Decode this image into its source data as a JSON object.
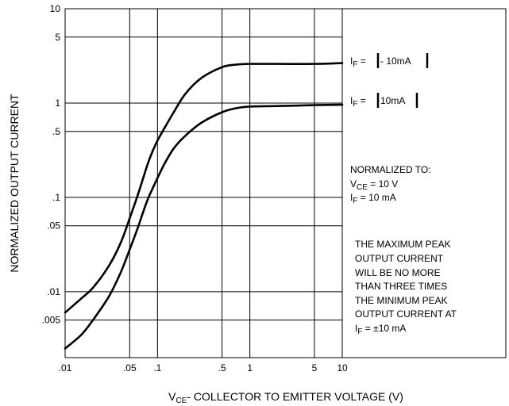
{
  "chart_data": {
    "type": "line",
    "xscale": "log",
    "yscale": "log",
    "xlim": [
      0.01,
      10
    ],
    "ylim": [
      0.002,
      10
    ],
    "x_ticks": [
      {
        "v": 0.01,
        "label": ".01"
      },
      {
        "v": 0.05,
        "label": ".05"
      },
      {
        "v": 0.1,
        "label": ".1"
      },
      {
        "v": 0.5,
        "label": ".5"
      },
      {
        "v": 1,
        "label": "1"
      },
      {
        "v": 5,
        "label": "5"
      },
      {
        "v": 10,
        "label": "10"
      }
    ],
    "y_ticks": [
      {
        "v": 10,
        "label": "10"
      },
      {
        "v": 5,
        "label": "5"
      },
      {
        "v": 1,
        "label": "1"
      },
      {
        "v": 0.5,
        "label": ".5"
      },
      {
        "v": 0.1,
        "label": ".1"
      },
      {
        "v": 0.05,
        "label": ".05"
      },
      {
        "v": 0.01,
        "label": ".01"
      },
      {
        "v": 0.005,
        "label": ".005"
      }
    ],
    "grid": true,
    "ylabel": "NORMALIZED OUTPUT CURRENT",
    "xlabel": {
      "pre": "V",
      "sub": "CE",
      "post": "- COLLECTOR TO EMITTER VOLTAGE (V)"
    },
    "series": [
      {
        "label": {
          "pre": "I",
          "sub": "F",
          "mid": " = ",
          "val": " - 10mA "
        },
        "x": [
          0.01,
          0.015,
          0.02,
          0.03,
          0.04,
          0.05,
          0.06,
          0.07,
          0.08,
          0.09,
          0.1,
          0.12,
          0.15,
          0.2,
          0.3,
          0.5,
          0.7,
          1,
          2,
          5,
          10
        ],
        "y": [
          0.006,
          0.0085,
          0.011,
          0.019,
          0.033,
          0.06,
          0.1,
          0.16,
          0.24,
          0.32,
          0.4,
          0.55,
          0.8,
          1.25,
          1.85,
          2.4,
          2.55,
          2.6,
          2.6,
          2.6,
          2.65
        ]
      },
      {
        "label": {
          "pre": "I",
          "sub": "F",
          "mid": " = ",
          "val": " 10mA "
        },
        "x": [
          0.01,
          0.015,
          0.02,
          0.03,
          0.04,
          0.05,
          0.06,
          0.07,
          0.08,
          0.1,
          0.12,
          0.15,
          0.2,
          0.3,
          0.5,
          0.7,
          1,
          2,
          5,
          10
        ],
        "y": [
          0.0025,
          0.0035,
          0.005,
          0.009,
          0.016,
          0.028,
          0.045,
          0.07,
          0.1,
          0.16,
          0.23,
          0.33,
          0.45,
          0.62,
          0.8,
          0.88,
          0.92,
          0.93,
          0.95,
          0.96
        ]
      }
    ],
    "annotations": {
      "normalized": {
        "heading": "NORMALIZED TO:",
        "vce": {
          "pre": "V",
          "sub": "CE",
          "post": " = 10 V"
        },
        "if": {
          "pre": "I",
          "sub": "F",
          "post": " = 10 mA"
        }
      },
      "note_lines": [
        "THE MAXIMUM PEAK",
        "OUTPUT CURRENT",
        "WILL BE NO MORE",
        "THAN THREE TIMES",
        "THE MINIMUM PEAK",
        "OUTPUT CURRENT AT"
      ],
      "note_last": {
        "pre": "I",
        "sub": "F",
        "post": " = ±10 mA"
      }
    }
  }
}
